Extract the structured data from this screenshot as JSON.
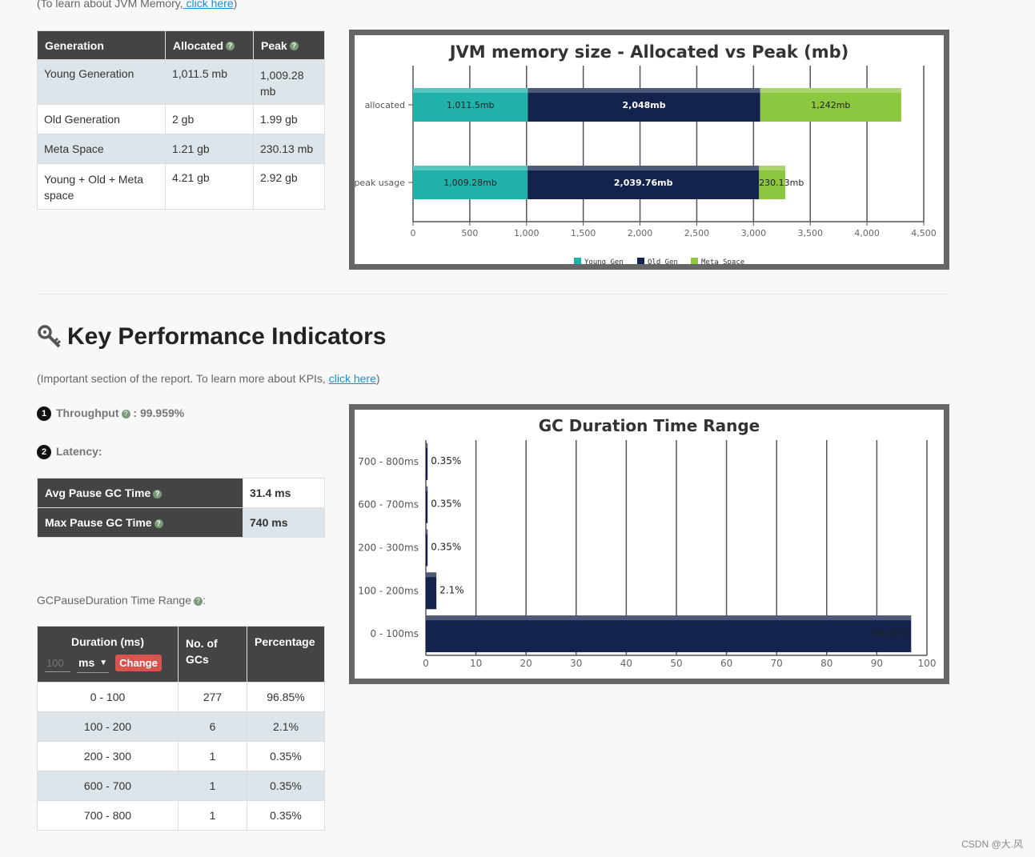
{
  "intro": {
    "prefix": "(To learn about JVM Memory,",
    "link": " click here",
    "suffix": ")"
  },
  "memory_table": {
    "headers": [
      "Generation",
      "Allocated",
      "Peak"
    ],
    "rows": [
      {
        "gen": "Young Generation",
        "alloc": "1,011.5 mb",
        "peak": "1,009.28 mb"
      },
      {
        "gen": "Old Generation",
        "alloc": "2 gb",
        "peak": "1.99 gb"
      },
      {
        "gen": "Meta Space",
        "alloc": "1.21 gb",
        "peak": "230.13 mb"
      },
      {
        "gen": "Young + Old + Meta space",
        "alloc": "4.21 gb",
        "peak": "2.92 gb"
      }
    ]
  },
  "kpi": {
    "title": "Key Performance Indicators",
    "subtitle_prefix": "(Important section of the report. To learn more about KPIs, ",
    "subtitle_link": "click here",
    "subtitle_suffix": ")",
    "throughput_num": "1",
    "throughput_label": "Throughput",
    "throughput_value": " : 99.959%",
    "latency_num": "2",
    "latency_label": "Latency:",
    "latency_rows": [
      {
        "label": "Avg Pause GC Time",
        "value": "31.4 ms"
      },
      {
        "label": "Max Pause GC Time",
        "value": "740 ms"
      }
    ]
  },
  "pause_range": {
    "label": "GCPauseDuration Time Range",
    "label_suffix": ":",
    "headers": {
      "duration": "Duration (ms)",
      "count": "No. of GCs",
      "pct": "Percentage"
    },
    "input_placeholder": "100",
    "unit_selected": "ms",
    "change_button": "Change",
    "rows": [
      {
        "range": "0 - 100",
        "count": "277",
        "pct": "96.85%"
      },
      {
        "range": "100 - 200",
        "count": "6",
        "pct": "2.1%"
      },
      {
        "range": "200 - 300",
        "count": "1",
        "pct": "0.35%"
      },
      {
        "range": "600 - 700",
        "count": "1",
        "pct": "0.35%"
      },
      {
        "range": "700 - 800",
        "count": "1",
        "pct": "0.35%"
      }
    ]
  },
  "colors": {
    "young": "#20b2aa",
    "old": "#14234d",
    "meta": "#8dc63f",
    "header": "#444444"
  },
  "watermark": "CSDN @大.风",
  "chart_data": [
    {
      "type": "bar",
      "orientation": "horizontal-stacked",
      "title": "JVM memory size - Allocated vs Peak (mb)",
      "categories": [
        "allocated",
        "peak usage"
      ],
      "series": [
        {
          "name": "Young Gen",
          "values": [
            1011.5,
            1009.28
          ],
          "labels": [
            "1,011.5mb",
            "1,009.28mb"
          ]
        },
        {
          "name": "Old Gen",
          "values": [
            2048,
            2039.76
          ],
          "labels": [
            "2,048mb",
            "2,039.76mb"
          ]
        },
        {
          "name": "Meta Space",
          "values": [
            1242,
            230.13
          ],
          "labels": [
            "1,242mb",
            "230.13mb"
          ]
        }
      ],
      "xlim": [
        0,
        4500
      ],
      "xticks": [
        "0",
        "500",
        "1,000",
        "1,500",
        "2,000",
        "2,500",
        "3,000",
        "3,500",
        "4,000",
        "4,500"
      ],
      "legend": "bottom"
    },
    {
      "type": "bar",
      "orientation": "horizontal",
      "title": "GC Duration Time Range",
      "categories": [
        "700 - 800ms",
        "600 - 700ms",
        "200 - 300ms",
        "100 - 200ms",
        "0 - 100ms"
      ],
      "values": [
        0.35,
        0.35,
        0.35,
        2.1,
        96.85
      ],
      "labels": [
        "0.35%",
        "0.35%",
        "0.35%",
        "2.1%",
        "96.85%"
      ],
      "xlim": [
        0,
        100
      ],
      "xticks": [
        "0",
        "10",
        "20",
        "30",
        "40",
        "50",
        "60",
        "70",
        "80",
        "90",
        "100"
      ]
    }
  ]
}
